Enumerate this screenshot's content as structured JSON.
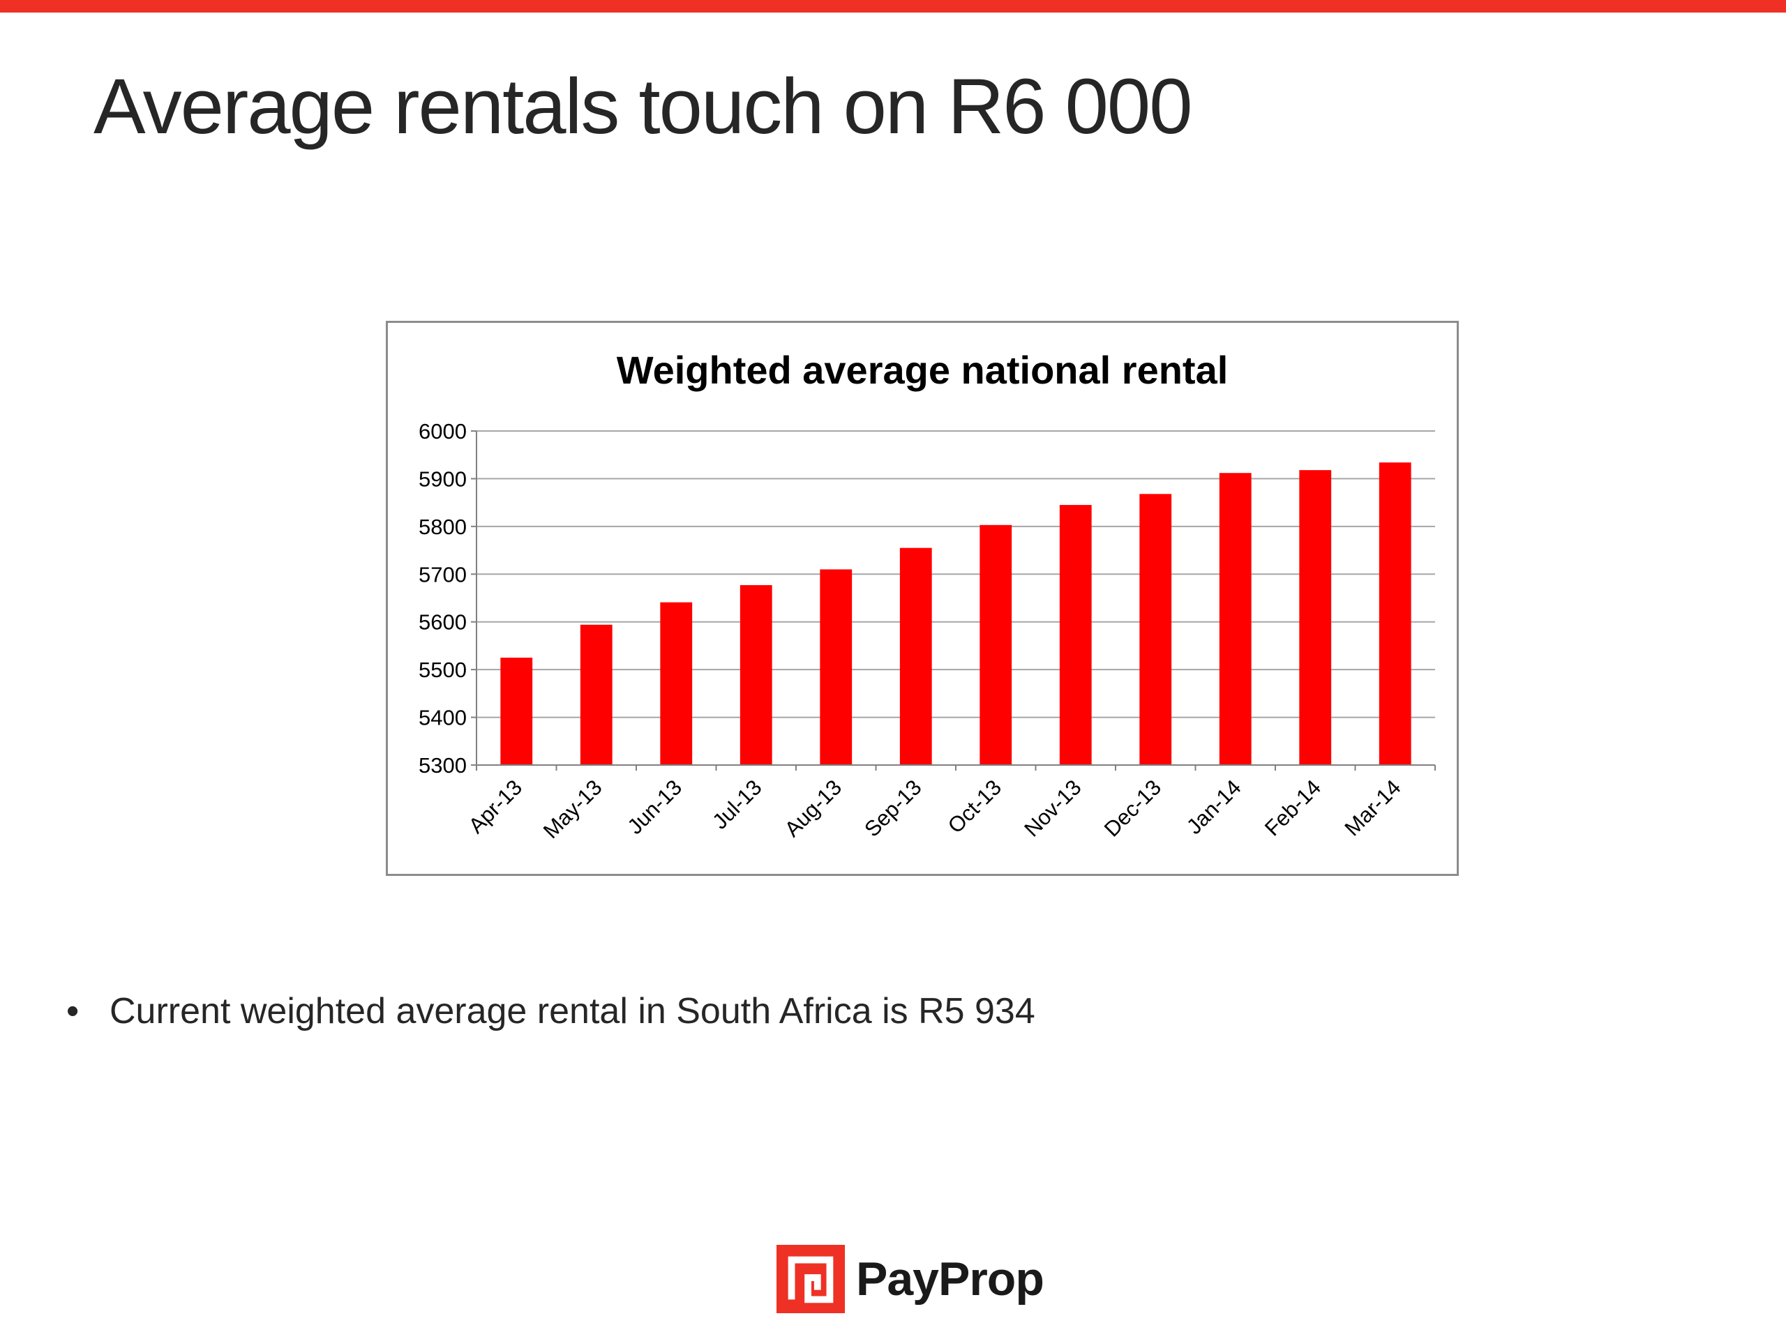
{
  "slide": {
    "title": "Average rentals touch on R6 000",
    "bullet": "Current weighted average rental in South Africa is R5 934",
    "logo_text": "PayProp"
  },
  "colors": {
    "accent": "#ee3124",
    "bar": "#ff0000",
    "text": "#262626",
    "grid": "#a6a6a6"
  },
  "icons": {
    "logo": "payprop-logo-icon",
    "bullet": "bullet-dot-icon"
  },
  "chart_data": {
    "type": "bar",
    "title": "Weighted average national rental",
    "xlabel": "",
    "ylabel": "",
    "categories": [
      "Apr-13",
      "May-13",
      "Jun-13",
      "Jul-13",
      "Aug-13",
      "Sep-13",
      "Oct-13",
      "Nov-13",
      "Dec-13",
      "Jan-14",
      "Feb-14",
      "Mar-14"
    ],
    "values": [
      5525,
      5594,
      5641,
      5677,
      5710,
      5755,
      5803,
      5845,
      5868,
      5912,
      5918,
      5934
    ],
    "ylim": [
      5300,
      6000
    ],
    "yticks": [
      5300,
      5400,
      5500,
      5600,
      5700,
      5800,
      5900,
      6000
    ],
    "grid": true,
    "legend": "none"
  }
}
